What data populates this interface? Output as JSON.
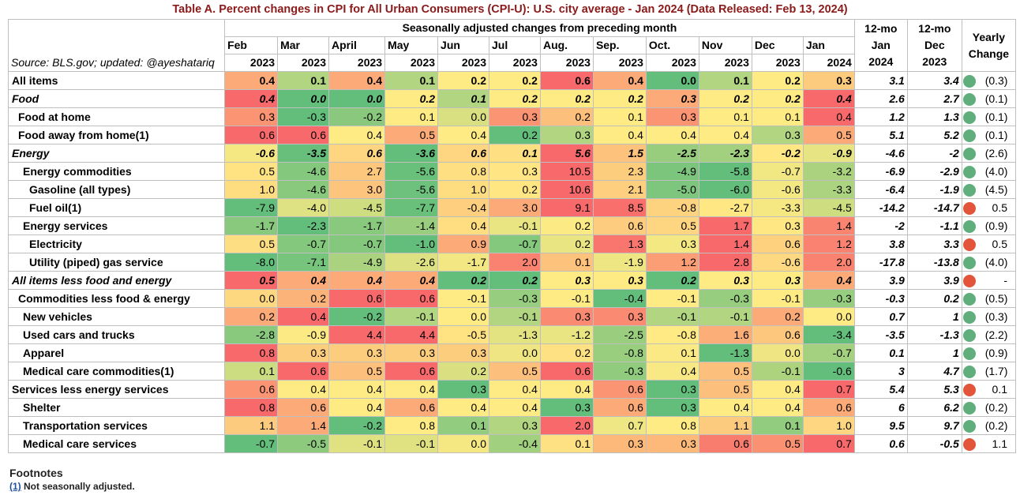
{
  "title": "Table A. Percent changes in CPI for All Urban Consumers (CPI-U): U.S. city average - Jan 2024 (Data Released: Feb 13, 2024)",
  "header": {
    "group_label": "Seasonally adjusted changes from preceding month",
    "source": "Source: BLS.gov; updated: @ayeshatariq",
    "months": [
      {
        "m": "Feb",
        "y": "2023"
      },
      {
        "m": "Mar",
        "y": "2023"
      },
      {
        "m": "April",
        "y": "2023"
      },
      {
        "m": "May",
        "y": "2023"
      },
      {
        "m": "Jun",
        "y": "2023"
      },
      {
        "m": "Jul",
        "y": "2023"
      },
      {
        "m": "Aug.",
        "y": "2023"
      },
      {
        "m": "Sep.",
        "y": "2023"
      },
      {
        "m": "Oct.",
        "y": "2023"
      },
      {
        "m": "Nov",
        "y": "2023"
      },
      {
        "m": "Dec",
        "y": "2023"
      },
      {
        "m": "Jan",
        "y": "2024"
      }
    ],
    "col_12mo_jan": [
      "12-mo",
      "Jan",
      "2024"
    ],
    "col_12mo_dec": [
      "12-mo",
      "Dec",
      "2023"
    ],
    "col_yearly": [
      "Yearly",
      "Change"
    ]
  },
  "colors": {
    "green": "#63be7b",
    "yellow": "#ffeb84",
    "red": "#f8696b",
    "dot_green": "#5fae7c",
    "dot_red": "#e2553a",
    "title": "#8b1a1a"
  },
  "chart_data": {
    "type": "table",
    "title": "Table A. Percent changes in CPI for All Urban Consumers (CPI-U): U.S. city average - Jan 2024 (Data Released: Feb 13, 2024)",
    "columns": [
      "Feb 2023",
      "Mar 2023",
      "April 2023",
      "May 2023",
      "Jun 2023",
      "Jul 2023",
      "Aug. 2023",
      "Sep. 2023",
      "Oct. 2023",
      "Nov 2023",
      "Dec 2023",
      "Jan 2024"
    ],
    "rows": [
      {
        "label": "All items",
        "indent": 0,
        "style": "bold",
        "values": [
          0.4,
          0.1,
          0.4,
          0.1,
          0.2,
          0.2,
          0.6,
          0.4,
          0.0,
          0.1,
          0.2,
          0.3
        ],
        "jan": "3.1",
        "dec": "3.4",
        "dot": "green",
        "yearly": "(0.3)"
      },
      {
        "label": "Food",
        "indent": 0,
        "style": "bolditalic",
        "values": [
          0.4,
          0.0,
          0.0,
          0.2,
          0.1,
          0.2,
          0.2,
          0.2,
          0.3,
          0.2,
          0.2,
          0.4
        ],
        "jan": "2.6",
        "dec": "2.7",
        "dot": "green",
        "yearly": "(0.1)"
      },
      {
        "label": "Food at home",
        "indent": 1,
        "style": "normal",
        "values": [
          0.3,
          -0.3,
          -0.2,
          0.1,
          0.0,
          0.3,
          0.2,
          0.1,
          0.3,
          0.1,
          0.1,
          0.4
        ],
        "jan": "1.2",
        "dec": "1.3",
        "dot": "green",
        "yearly": "(0.1)"
      },
      {
        "label": "Food away from home(1)",
        "indent": 1,
        "style": "normal",
        "values": [
          0.6,
          0.6,
          0.4,
          0.5,
          0.4,
          0.2,
          0.3,
          0.4,
          0.4,
          0.4,
          0.3,
          0.5
        ],
        "jan": "5.1",
        "dec": "5.2",
        "dot": "green",
        "yearly": "(0.1)"
      },
      {
        "label": "Energy",
        "indent": 0,
        "style": "bolditalic",
        "values": [
          -0.6,
          -3.5,
          0.6,
          -3.6,
          0.6,
          0.1,
          5.6,
          1.5,
          -2.5,
          -2.3,
          -0.2,
          -0.9
        ],
        "jan": "-4.6",
        "dec": "-2",
        "dot": "green",
        "yearly": "(2.6)"
      },
      {
        "label": "Energy commodities",
        "indent": 2,
        "style": "normal",
        "values": [
          0.5,
          -4.6,
          2.7,
          -5.6,
          0.8,
          0.3,
          10.5,
          2.3,
          -4.9,
          -5.8,
          -0.7,
          -3.2
        ],
        "jan": "-6.9",
        "dec": "-2.9",
        "dot": "green",
        "yearly": "(4.0)"
      },
      {
        "label": "Gasoline (all types)",
        "indent": 3,
        "style": "normal",
        "values": [
          1.0,
          -4.6,
          3.0,
          -5.6,
          1.0,
          0.2,
          10.6,
          2.1,
          -5.0,
          -6.0,
          -0.6,
          -3.3
        ],
        "jan": "-6.4",
        "dec": "-1.9",
        "dot": "green",
        "yearly": "(4.5)"
      },
      {
        "label": "Fuel oil(1)",
        "indent": 3,
        "style": "normal",
        "values": [
          -7.9,
          -4.0,
          -4.5,
          -7.7,
          -0.4,
          3.0,
          9.1,
          8.5,
          -0.8,
          -2.7,
          -3.3,
          -4.5
        ],
        "jan": "-14.2",
        "dec": "-14.7",
        "dot": "red",
        "yearly": "0.5"
      },
      {
        "label": "Energy services",
        "indent": 2,
        "style": "normal",
        "values": [
          -1.7,
          -2.3,
          -1.7,
          -1.4,
          0.4,
          -0.1,
          0.2,
          0.6,
          0.5,
          1.7,
          0.3,
          1.4
        ],
        "jan": "-2",
        "dec": "-1.1",
        "dot": "green",
        "yearly": "(0.9)"
      },
      {
        "label": "Electricity",
        "indent": 3,
        "style": "normal",
        "values": [
          0.5,
          -0.7,
          -0.7,
          -1.0,
          0.9,
          -0.7,
          0.2,
          1.3,
          0.3,
          1.4,
          0.6,
          1.2
        ],
        "jan": "3.8",
        "dec": "3.3",
        "dot": "red",
        "yearly": "0.5"
      },
      {
        "label": "Utility (piped) gas service",
        "indent": 3,
        "style": "normal",
        "values": [
          -8.0,
          -7.1,
          -4.9,
          -2.6,
          -1.7,
          2.0,
          0.1,
          -1.9,
          1.2,
          2.8,
          -0.6,
          2.0
        ],
        "jan": "-17.8",
        "dec": "-13.8",
        "dot": "green",
        "yearly": "(4.0)"
      },
      {
        "label": "All items less food and energy",
        "indent": 0,
        "style": "bolditalic",
        "values": [
          0.5,
          0.4,
          0.4,
          0.4,
          0.2,
          0.2,
          0.3,
          0.3,
          0.2,
          0.3,
          0.3,
          0.4
        ],
        "jan": "3.9",
        "dec": "3.9",
        "dot": "red",
        "yearly": "-"
      },
      {
        "label": "Commodities less food & energy",
        "indent": 1,
        "style": "normal",
        "values": [
          0.0,
          0.2,
          0.6,
          0.6,
          -0.1,
          -0.3,
          -0.1,
          -0.4,
          -0.1,
          -0.3,
          -0.1,
          -0.3
        ],
        "jan": "-0.3",
        "dec": "0.2",
        "dot": "green",
        "yearly": "(0.5)"
      },
      {
        "label": "New vehicles",
        "indent": 2,
        "style": "normal",
        "values": [
          0.2,
          0.4,
          -0.2,
          -0.1,
          0.0,
          -0.1,
          0.3,
          0.3,
          -0.1,
          -0.1,
          0.2,
          0.0
        ],
        "jan": "0.7",
        "dec": "1",
        "dot": "green",
        "yearly": "(0.3)"
      },
      {
        "label": "Used cars and trucks",
        "indent": 2,
        "style": "normal",
        "values": [
          -2.8,
          -0.9,
          4.4,
          4.4,
          -0.5,
          -1.3,
          -1.2,
          -2.5,
          -0.8,
          1.6,
          0.6,
          -3.4
        ],
        "jan": "-3.5",
        "dec": "-1.3",
        "dot": "green",
        "yearly": "(2.2)"
      },
      {
        "label": "Apparel",
        "indent": 2,
        "style": "normal",
        "values": [
          0.8,
          0.3,
          0.3,
          0.3,
          0.3,
          0.0,
          0.2,
          -0.8,
          0.1,
          -1.3,
          0.0,
          -0.7
        ],
        "jan": "0.1",
        "dec": "1",
        "dot": "green",
        "yearly": "(0.9)"
      },
      {
        "label": "Medical care commodities(1)",
        "indent": 2,
        "style": "normal",
        "values": [
          0.1,
          0.6,
          0.5,
          0.6,
          0.2,
          0.5,
          0.6,
          -0.3,
          0.4,
          0.5,
          -0.1,
          -0.6
        ],
        "jan": "3",
        "dec": "4.7",
        "dot": "green",
        "yearly": "(1.7)"
      },
      {
        "label": "Services less energy services",
        "indent": 0,
        "style": "normal",
        "values": [
          0.6,
          0.4,
          0.4,
          0.4,
          0.3,
          0.4,
          0.4,
          0.6,
          0.3,
          0.5,
          0.4,
          0.7
        ],
        "jan": "5.4",
        "dec": "5.3",
        "dot": "red",
        "yearly": "0.1"
      },
      {
        "label": "Shelter",
        "indent": 2,
        "style": "normal",
        "values": [
          0.8,
          0.6,
          0.4,
          0.6,
          0.4,
          0.4,
          0.3,
          0.6,
          0.3,
          0.4,
          0.4,
          0.6
        ],
        "jan": "6",
        "dec": "6.2",
        "dot": "green",
        "yearly": "(0.2)"
      },
      {
        "label": "Transportation services",
        "indent": 2,
        "style": "normal",
        "values": [
          1.1,
          1.4,
          -0.2,
          0.8,
          0.1,
          0.3,
          2.0,
          0.7,
          0.8,
          1.1,
          0.1,
          1.0
        ],
        "jan": "9.5",
        "dec": "9.7",
        "dot": "green",
        "yearly": "(0.2)"
      },
      {
        "label": "Medical care services",
        "indent": 2,
        "style": "normal",
        "values": [
          -0.7,
          -0.5,
          -0.1,
          -0.1,
          0.0,
          -0.4,
          0.1,
          0.3,
          0.3,
          0.6,
          0.5,
          0.7
        ],
        "jan": "0.6",
        "dec": "-0.5",
        "dot": "red",
        "yearly": "1.1"
      }
    ]
  },
  "footnotes": {
    "title": "Footnotes",
    "marker": "(1)",
    "text": " Not seasonally adjusted."
  }
}
